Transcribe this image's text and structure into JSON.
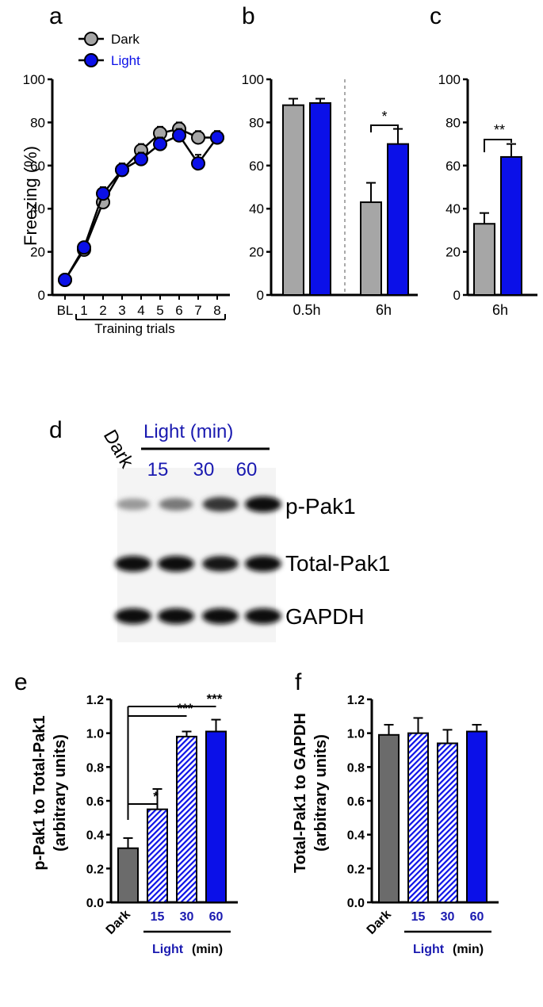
{
  "colors": {
    "dark": "#a6a6a6",
    "light": "#0b10e8",
    "dark_bar_ef": "#6b6b6b",
    "light_text": "#1a1ab0"
  },
  "chart_data": [
    {
      "panel": "a",
      "type": "line",
      "ylabel": "Freezing (%)",
      "xlabel": "Training trials",
      "ylim": [
        0,
        100
      ],
      "yticks": [
        "0",
        "20",
        "40",
        "60",
        "80",
        "100"
      ],
      "categories": [
        "BL",
        "1",
        "2",
        "3",
        "4",
        "5",
        "6",
        "7",
        "8"
      ],
      "series": [
        {
          "name": "Dark",
          "values": [
            7,
            21,
            43,
            58,
            67,
            75,
            77,
            73,
            73
          ],
          "errors": [
            2,
            2,
            3,
            3,
            3,
            3,
            3,
            3,
            3
          ]
        },
        {
          "name": "Light",
          "values": [
            7,
            22,
            47,
            58,
            63,
            70,
            74,
            61,
            73
          ],
          "errors": [
            2,
            2,
            3,
            3,
            3,
            3,
            3,
            4,
            3
          ]
        }
      ],
      "legend_position": "top-left"
    },
    {
      "panel": "b",
      "type": "bar",
      "ylim": [
        0,
        100
      ],
      "yticks": [
        "0",
        "20",
        "40",
        "60",
        "80",
        "100"
      ],
      "categories": [
        "0.5h",
        "6h"
      ],
      "series": [
        {
          "values": [
            88,
            43
          ],
          "errors": [
            3,
            9
          ]
        },
        {
          "values": [
            89,
            70
          ],
          "errors": [
            2,
            7
          ]
        }
      ],
      "annotations": [
        {
          "group": "6h",
          "text": "*"
        }
      ]
    },
    {
      "panel": "c",
      "type": "bar",
      "ylim": [
        0,
        100
      ],
      "yticks": [
        "0",
        "20",
        "40",
        "60",
        "80",
        "100"
      ],
      "categories": [
        "6h"
      ],
      "series": [
        {
          "values": [
            33
          ],
          "errors": [
            5
          ]
        },
        {
          "values": [
            64
          ],
          "errors": [
            6
          ]
        }
      ],
      "annotations": [
        {
          "group": "6h",
          "text": "**"
        }
      ]
    },
    {
      "panel": "e",
      "type": "bar",
      "ylabel": "p-Pak1 to Total-Pak1",
      "ylabel2": "(arbitrary units)",
      "xlabel": "Light",
      "xunit": "(min)",
      "ylim": [
        0,
        1.2
      ],
      "yticks": [
        "0.0",
        "0.2",
        "0.4",
        "0.6",
        "0.8",
        "1.0",
        "1.2"
      ],
      "categories": [
        "Dark",
        "15",
        "30",
        "60"
      ],
      "values": [
        0.32,
        0.55,
        0.98,
        1.01
      ],
      "errors": [
        0.06,
        0.12,
        0.03,
        0.07
      ],
      "annotations": [
        {
          "category": "15",
          "text": "*"
        },
        {
          "category": "30",
          "text": "***"
        },
        {
          "category": "60",
          "text": "***"
        }
      ]
    },
    {
      "panel": "f",
      "type": "bar",
      "ylabel": "Total-Pak1 to GAPDH",
      "ylabel2": "(arbitrary units)",
      "xlabel": "Light",
      "xunit": "(min)",
      "ylim": [
        0,
        1.2
      ],
      "yticks": [
        "0.0",
        "0.2",
        "0.4",
        "0.6",
        "0.8",
        "1.0",
        "1.2"
      ],
      "categories": [
        "Dark",
        "15",
        "30",
        "60"
      ],
      "values": [
        0.99,
        1.0,
        0.94,
        1.01
      ],
      "errors": [
        0.06,
        0.09,
        0.08,
        0.04
      ]
    }
  ],
  "panel_labels": [
    "a",
    "b",
    "c",
    "d",
    "e",
    "f"
  ],
  "blot": {
    "lanes": [
      "Dark",
      "15",
      "30",
      "60"
    ],
    "header": "Light (min)",
    "rows": [
      {
        "label": "p-Pak1",
        "intensity": [
          0.35,
          0.5,
          0.8,
          1.0
        ]
      },
      {
        "label": "Total-Pak1",
        "intensity": [
          1.0,
          1.0,
          0.95,
          1.0
        ]
      },
      {
        "label": "GAPDH",
        "intensity": [
          1.0,
          1.0,
          1.0,
          1.0
        ]
      }
    ]
  }
}
